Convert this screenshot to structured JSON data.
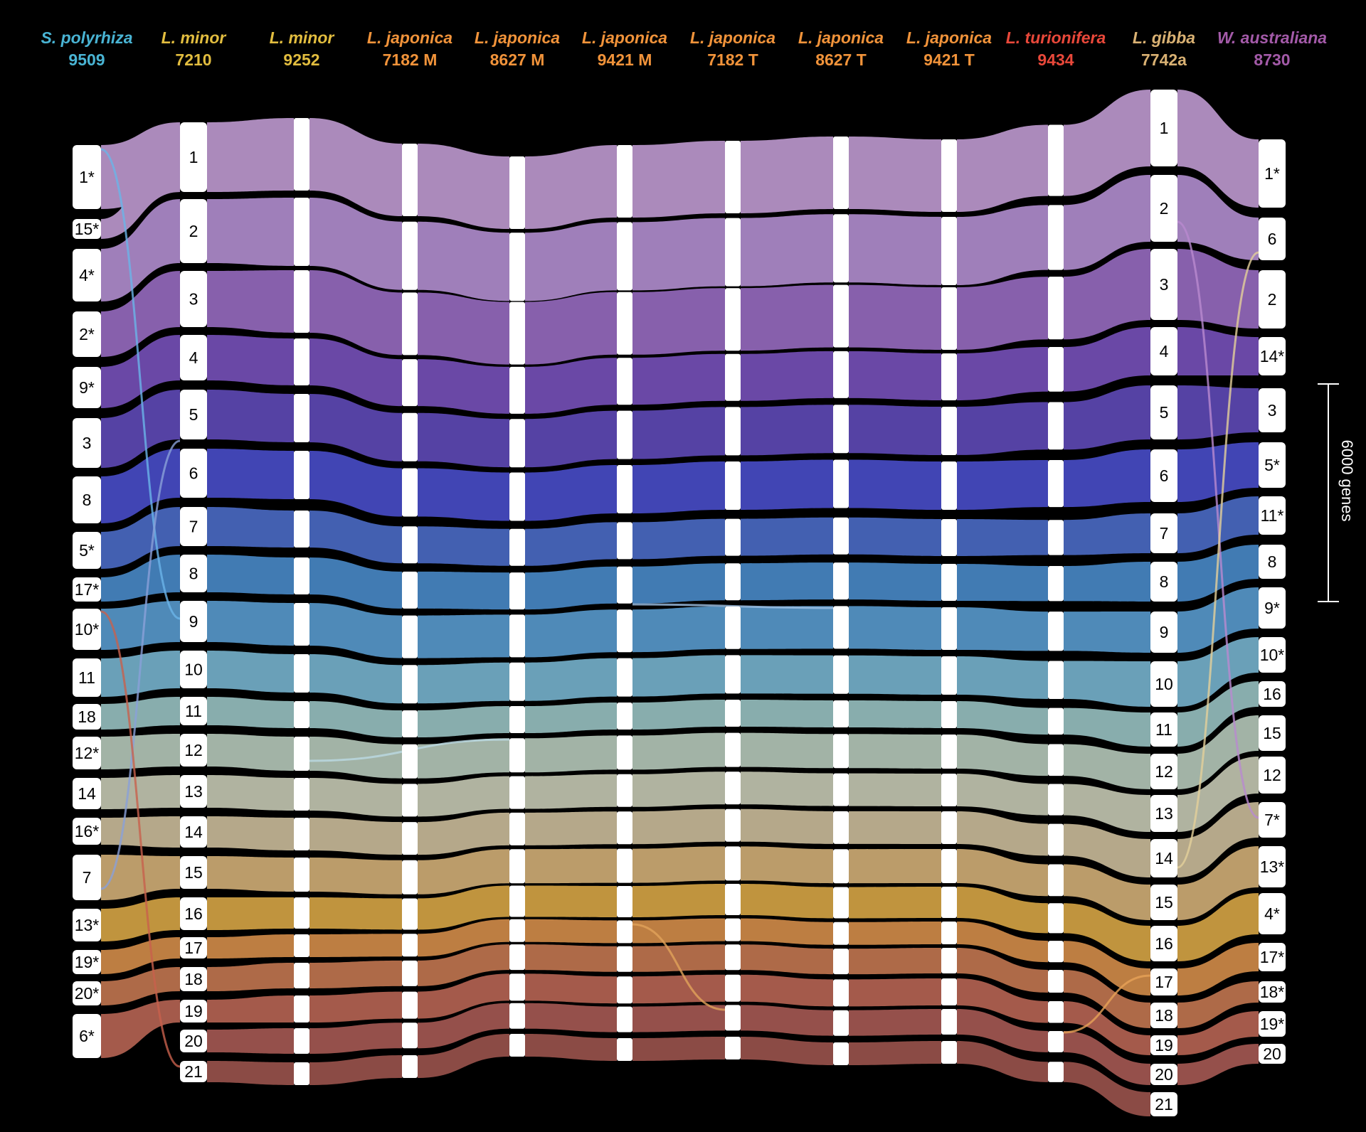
{
  "genomes": [
    {
      "species": "S. polyrhiza",
      "accession": "9509",
      "color": "#49b4d4",
      "chromosomes": [
        "1*",
        "15*",
        "4*",
        "2*",
        "9*",
        "3",
        "8",
        "5*",
        "17*",
        "10*",
        "11",
        "18",
        "12*",
        "14",
        "16*",
        "7",
        "13*",
        "19*",
        "20*",
        "6*"
      ]
    },
    {
      "species": "L. minor",
      "accession": "7210",
      "color": "#e2bd3f",
      "chromosomes": [
        "1",
        "2",
        "3",
        "4",
        "5",
        "6",
        "7",
        "8",
        "9",
        "10",
        "11",
        "12",
        "13",
        "14",
        "15",
        "16",
        "17",
        "18",
        "19",
        "20",
        "21"
      ]
    },
    {
      "species": "L. minor",
      "accession": "9252",
      "color": "#e2bd3f",
      "chromosomes": []
    },
    {
      "species": "L. japonica",
      "accession": "7182 M",
      "color": "#f1933a",
      "chromosomes": []
    },
    {
      "species": "L. japonica",
      "accession": "8627 M",
      "color": "#f1933a",
      "chromosomes": []
    },
    {
      "species": "L. japonica",
      "accession": "9421 M",
      "color": "#f1933a",
      "chromosomes": []
    },
    {
      "species": "L. japonica",
      "accession": "7182 T",
      "color": "#f1933a",
      "chromosomes": []
    },
    {
      "species": "L. japonica",
      "accession": "8627 T",
      "color": "#f1933a",
      "chromosomes": []
    },
    {
      "species": "L. japonica",
      "accession": "9421 T",
      "color": "#f1933a",
      "chromosomes": []
    },
    {
      "species": "L. turionifera",
      "accession": "9434",
      "color": "#e9483a",
      "chromosomes": []
    },
    {
      "species": "L. gibba",
      "accession": "7742a",
      "color": "#d9b173",
      "chromosomes": [
        "1",
        "2",
        "3",
        "4",
        "5",
        "6",
        "7",
        "8",
        "9",
        "10",
        "11",
        "12",
        "13",
        "14",
        "15",
        "16",
        "17",
        "18",
        "19",
        "20",
        "21"
      ]
    },
    {
      "species": "W. australiana",
      "accession": "8730",
      "color": "#a35aa8",
      "chromosomes": [
        "1*",
        "6",
        "2",
        "14*",
        "3",
        "5*",
        "11*",
        "8",
        "9*",
        "10*",
        "16",
        "15",
        "12",
        "7*",
        "13*",
        "4*",
        "17*",
        "18*",
        "19*",
        "20"
      ]
    }
  ],
  "scale_bar": {
    "label": "6000 genes"
  },
  "palette": [
    "#ab8abb",
    "#9f7fba",
    "#8760ac",
    "#6a48a6",
    "#5542a4",
    "#4145b4",
    "#4360b1",
    "#417bb3",
    "#4f8ab8",
    "#6aa0b8",
    "#88adad",
    "#a2b3a6",
    "#b0b3a0",
    "#b5a88a",
    "#bb9c6a",
    "#c0943e",
    "#bd7e42",
    "#ae6a48",
    "#a45a4b",
    "#95504b",
    "#8b4b45"
  ]
}
